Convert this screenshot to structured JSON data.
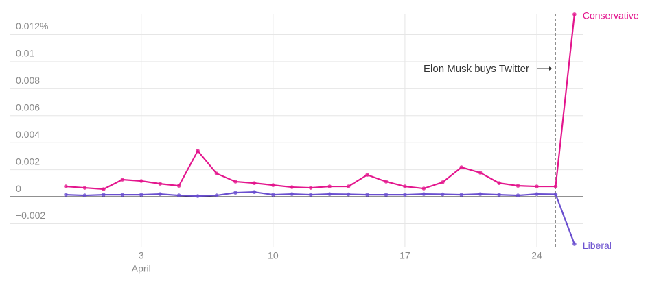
{
  "chart_data": {
    "type": "line",
    "categories": [
      null,
      null,
      null,
      null,
      "3",
      null,
      null,
      null,
      null,
      null,
      null,
      "10",
      null,
      null,
      null,
      null,
      null,
      null,
      "17",
      null,
      null,
      null,
      null,
      null,
      null,
      "24",
      null,
      null
    ],
    "x_group_label": "April",
    "series": [
      {
        "name": "Conservative",
        "color": "#e3168d",
        "values": [
          0.00076,
          0.00066,
          0.00056,
          0.00127,
          0.00117,
          0.00096,
          0.00081,
          0.0034,
          0.00172,
          0.00112,
          0.00101,
          0.00086,
          0.00071,
          0.00066,
          0.00076,
          0.00076,
          0.00162,
          0.00112,
          0.00076,
          0.00061,
          0.00107,
          0.00218,
          0.00178,
          0.00101,
          0.00081,
          0.00076,
          0.00076,
          0.0135
        ]
      },
      {
        "name": "Liberal",
        "color": "#6a4fcf",
        "values": [
          0.00015,
          0.0001,
          0.00015,
          0.00015,
          0.00015,
          0.0002,
          0.0001,
          5e-05,
          0.0001,
          0.0003,
          0.00035,
          0.00015,
          0.0002,
          0.00015,
          0.0002,
          0.00018,
          0.00015,
          0.00015,
          0.00015,
          0.0002,
          0.00018,
          0.00015,
          0.0002,
          0.00015,
          0.0001,
          0.0002,
          0.00018,
          -0.0035
        ]
      }
    ],
    "ylim": [
      -0.0037,
      0.0138
    ],
    "yticks": [
      {
        "value": -0.002,
        "label": "−0.002"
      },
      0,
      0.002,
      0.004,
      0.006,
      0.008,
      0.01,
      {
        "value": 0.012,
        "label": "0.012%"
      }
    ],
    "grid": true,
    "annotations": [
      {
        "text": "Elon Musk buys Twitter"
      }
    ]
  }
}
